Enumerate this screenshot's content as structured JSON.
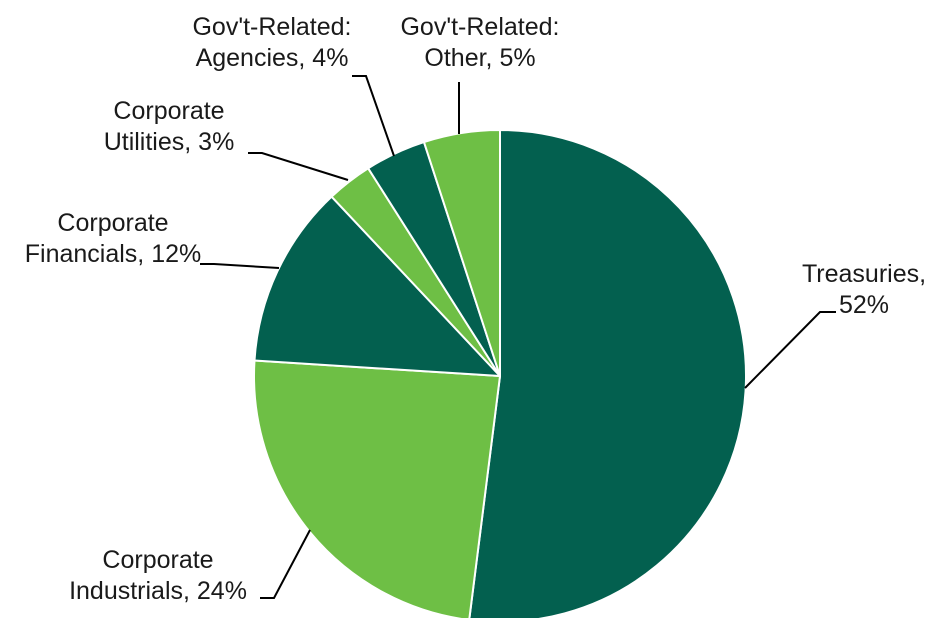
{
  "colors": {
    "dark_green": "#03604F",
    "light_green": "#6EBF45",
    "slice_border": "#ffffff",
    "leader_line": "#000000"
  },
  "chart_data": {
    "type": "pie",
    "start_angle_deg": 0,
    "direction": "clockwise",
    "slices": [
      {
        "label_lines": [
          "Treasuries,",
          "52%"
        ],
        "category": "Treasuries",
        "value": 52,
        "color": "#03604F"
      },
      {
        "label_lines": [
          "Corporate",
          "Industrials, 24%"
        ],
        "category": "Corporate Industrials",
        "value": 24,
        "color": "#6EBF45"
      },
      {
        "label_lines": [
          "Corporate",
          "Financials, 12%"
        ],
        "category": "Corporate Financials",
        "value": 12,
        "color": "#03604F"
      },
      {
        "label_lines": [
          "Corporate",
          "Utilities, 3%"
        ],
        "category": "Corporate Utilities",
        "value": 3,
        "color": "#6EBF45"
      },
      {
        "label_lines": [
          "Gov't-Related:",
          "Agencies, 4%"
        ],
        "category": "Gov't-Related: Agencies",
        "value": 4,
        "color": "#03604F"
      },
      {
        "label_lines": [
          "Gov't-Related:",
          "Other, 5%"
        ],
        "category": "Gov't-Related: Other",
        "value": 5,
        "color": "#6EBF45"
      }
    ]
  }
}
